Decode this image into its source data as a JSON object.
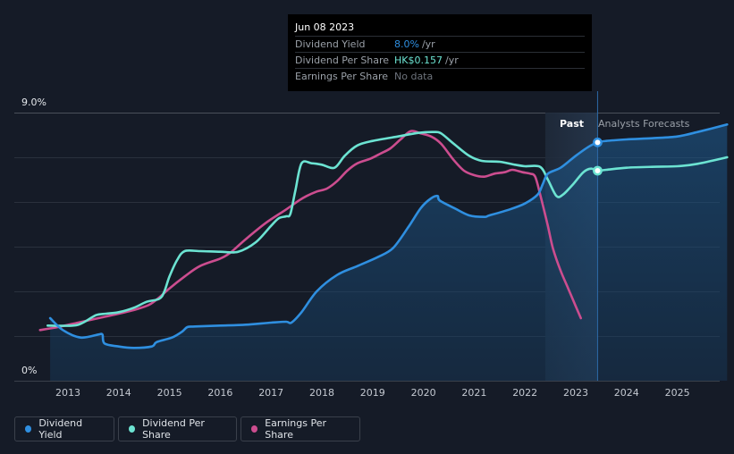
{
  "chart_data": {
    "type": "line",
    "y_axis": {
      "top_label": "9.0%",
      "bottom_label": "0%",
      "range": [
        0,
        9.0
      ]
    },
    "x_ticks": [
      "2013",
      "2014",
      "2015",
      "2016",
      "2017",
      "2018",
      "2019",
      "2020",
      "2021",
      "2022",
      "2023",
      "2024",
      "2025"
    ],
    "past_label": "Past",
    "forecast_label": "Analysts Forecasts",
    "forecast_start_year": 2022.4,
    "cursor_year": 2023.43,
    "series": [
      {
        "name": "Dividend Yield",
        "color": "#2f8fe0",
        "points": [
          [
            2012.65,
            2.1
          ],
          [
            2012.9,
            1.7
          ],
          [
            2013.25,
            1.45
          ],
          [
            2013.6,
            1.55
          ],
          [
            2013.68,
            1.55
          ],
          [
            2013.72,
            1.25
          ],
          [
            2014.0,
            1.15
          ],
          [
            2014.3,
            1.1
          ],
          [
            2014.65,
            1.15
          ],
          [
            2014.75,
            1.3
          ],
          [
            2015.05,
            1.45
          ],
          [
            2015.25,
            1.65
          ],
          [
            2015.35,
            1.8
          ],
          [
            2015.5,
            1.82
          ],
          [
            2016.0,
            1.85
          ],
          [
            2016.5,
            1.88
          ],
          [
            2017.0,
            1.95
          ],
          [
            2017.3,
            1.98
          ],
          [
            2017.4,
            1.95
          ],
          [
            2017.6,
            2.3
          ],
          [
            2017.9,
            3.0
          ],
          [
            2018.3,
            3.55
          ],
          [
            2018.7,
            3.85
          ],
          [
            2019.1,
            4.15
          ],
          [
            2019.4,
            4.45
          ],
          [
            2019.7,
            5.15
          ],
          [
            2019.95,
            5.8
          ],
          [
            2020.15,
            6.12
          ],
          [
            2020.28,
            6.2
          ],
          [
            2020.32,
            6.05
          ],
          [
            2020.6,
            5.8
          ],
          [
            2020.9,
            5.55
          ],
          [
            2021.2,
            5.5
          ],
          [
            2021.3,
            5.55
          ],
          [
            2021.7,
            5.75
          ],
          [
            2022.0,
            5.95
          ],
          [
            2022.25,
            6.25
          ],
          [
            2022.35,
            6.6
          ],
          [
            2022.45,
            6.95
          ],
          [
            2022.7,
            7.15
          ],
          [
            2023.0,
            7.55
          ],
          [
            2023.25,
            7.85
          ],
          [
            2023.43,
            8.0
          ],
          [
            2023.6,
            8.05
          ],
          [
            2024.0,
            8.1
          ],
          [
            2024.5,
            8.14
          ],
          [
            2025.0,
            8.2
          ],
          [
            2025.4,
            8.35
          ],
          [
            2025.98,
            8.6
          ]
        ]
      },
      {
        "name": "Dividend Per Share",
        "color": "#6ce3d2",
        "points": [
          [
            2012.6,
            1.85
          ],
          [
            2013.1,
            1.85
          ],
          [
            2013.3,
            1.95
          ],
          [
            2013.55,
            2.2
          ],
          [
            2013.75,
            2.25
          ],
          [
            2014.0,
            2.3
          ],
          [
            2014.3,
            2.45
          ],
          [
            2014.55,
            2.65
          ],
          [
            2014.8,
            2.75
          ],
          [
            2014.9,
            3.0
          ],
          [
            2015.0,
            3.5
          ],
          [
            2015.15,
            4.05
          ],
          [
            2015.3,
            4.35
          ],
          [
            2015.6,
            4.35
          ],
          [
            2016.0,
            4.33
          ],
          [
            2016.35,
            4.33
          ],
          [
            2016.7,
            4.65
          ],
          [
            2017.0,
            5.2
          ],
          [
            2017.15,
            5.45
          ],
          [
            2017.3,
            5.52
          ],
          [
            2017.38,
            5.6
          ],
          [
            2017.48,
            6.4
          ],
          [
            2017.6,
            7.3
          ],
          [
            2017.8,
            7.3
          ],
          [
            2018.0,
            7.25
          ],
          [
            2018.25,
            7.15
          ],
          [
            2018.45,
            7.55
          ],
          [
            2018.7,
            7.9
          ],
          [
            2019.0,
            8.05
          ],
          [
            2019.5,
            8.2
          ],
          [
            2019.9,
            8.32
          ],
          [
            2020.2,
            8.35
          ],
          [
            2020.35,
            8.3
          ],
          [
            2020.6,
            7.95
          ],
          [
            2020.9,
            7.55
          ],
          [
            2021.15,
            7.38
          ],
          [
            2021.5,
            7.35
          ],
          [
            2021.8,
            7.25
          ],
          [
            2022.0,
            7.2
          ],
          [
            2022.3,
            7.18
          ],
          [
            2022.45,
            6.75
          ],
          [
            2022.62,
            6.2
          ],
          [
            2022.75,
            6.25
          ],
          [
            2022.95,
            6.6
          ],
          [
            2023.15,
            7.0
          ],
          [
            2023.3,
            7.12
          ],
          [
            2023.43,
            7.05
          ],
          [
            2023.6,
            7.08
          ],
          [
            2024.0,
            7.15
          ],
          [
            2024.5,
            7.18
          ],
          [
            2025.0,
            7.2
          ],
          [
            2025.4,
            7.28
          ],
          [
            2025.98,
            7.5
          ]
        ]
      },
      {
        "name": "Earnings Per Share",
        "color": "#cc4d8f",
        "points": [
          [
            2012.45,
            1.7
          ],
          [
            2012.8,
            1.8
          ],
          [
            2013.2,
            1.95
          ],
          [
            2013.6,
            2.1
          ],
          [
            2014.0,
            2.25
          ],
          [
            2014.35,
            2.4
          ],
          [
            2014.6,
            2.55
          ],
          [
            2014.8,
            2.8
          ],
          [
            2015.0,
            3.1
          ],
          [
            2015.3,
            3.5
          ],
          [
            2015.6,
            3.85
          ],
          [
            2016.0,
            4.1
          ],
          [
            2016.2,
            4.3
          ],
          [
            2016.5,
            4.75
          ],
          [
            2016.9,
            5.3
          ],
          [
            2017.3,
            5.75
          ],
          [
            2017.55,
            6.05
          ],
          [
            2017.7,
            6.2
          ],
          [
            2017.9,
            6.35
          ],
          [
            2018.1,
            6.45
          ],
          [
            2018.3,
            6.7
          ],
          [
            2018.5,
            7.05
          ],
          [
            2018.7,
            7.3
          ],
          [
            2018.95,
            7.45
          ],
          [
            2019.15,
            7.62
          ],
          [
            2019.35,
            7.8
          ],
          [
            2019.55,
            8.1
          ],
          [
            2019.75,
            8.38
          ],
          [
            2019.95,
            8.3
          ],
          [
            2020.15,
            8.2
          ],
          [
            2020.35,
            7.95
          ],
          [
            2020.6,
            7.4
          ],
          [
            2020.8,
            7.05
          ],
          [
            2021.0,
            6.9
          ],
          [
            2021.2,
            6.85
          ],
          [
            2021.4,
            6.95
          ],
          [
            2021.6,
            7.0
          ],
          [
            2021.75,
            7.08
          ],
          [
            2021.95,
            7.0
          ],
          [
            2022.1,
            6.95
          ],
          [
            2022.2,
            6.85
          ],
          [
            2022.3,
            6.25
          ],
          [
            2022.45,
            5.2
          ],
          [
            2022.55,
            4.45
          ],
          [
            2022.7,
            3.7
          ],
          [
            2022.85,
            3.1
          ],
          [
            2023.0,
            2.5
          ],
          [
            2023.1,
            2.1
          ]
        ]
      }
    ],
    "tooltip": {
      "date": "Jun 08 2023",
      "rows": [
        {
          "label": "Dividend Yield",
          "value": "8.0%",
          "unit": "/yr",
          "color": "#2f8fe0"
        },
        {
          "label": "Dividend Per Share",
          "value": "HK$0.157",
          "unit": "/yr",
          "color": "#6ce3d2"
        },
        {
          "label": "Earnings Per Share",
          "value": "No data",
          "unit": "",
          "color": "#6d737c"
        }
      ]
    },
    "legend": [
      {
        "label": "Dividend Yield",
        "color": "#2f8fe0"
      },
      {
        "label": "Dividend Per Share",
        "color": "#6ce3d2"
      },
      {
        "label": "Earnings Per Share",
        "color": "#cc4d8f"
      }
    ]
  }
}
